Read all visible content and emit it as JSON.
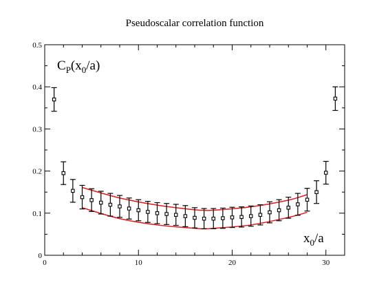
{
  "chart_data": {
    "type": "scatter",
    "title": "Pseudoscalar correlation function",
    "ylabel_main": "C",
    "ylabel_sub": "P",
    "ylabel_rest": "(x",
    "ylabel_sub2": "0",
    "ylabel_tail": "/a)",
    "xlabel_main": "x",
    "xlabel_sub": "0",
    "xlabel_tail": "/a",
    "xlim": [
      0,
      32
    ],
    "ylim": [
      0,
      0.5
    ],
    "x_ticks": [
      0,
      10,
      20,
      30
    ],
    "x_tick_labels": [
      "0",
      "10",
      "20",
      "30"
    ],
    "y_ticks": [
      0,
      0.1,
      0.2,
      0.3,
      0.4,
      0.5
    ],
    "y_tick_labels": [
      "0",
      "0.1",
      "0.2",
      "0.3",
      "0.4",
      "0.5"
    ],
    "x_minor_step": 2,
    "y_minor_step": 0.05,
    "grid": false,
    "points": [
      {
        "x": 1,
        "y": 0.37,
        "err": 0.028
      },
      {
        "x": 2,
        "y": 0.195,
        "err": 0.027
      },
      {
        "x": 3,
        "y": 0.153,
        "err": 0.027
      },
      {
        "x": 4,
        "y": 0.138,
        "err": 0.028
      },
      {
        "x": 5,
        "y": 0.131,
        "err": 0.027
      },
      {
        "x": 6,
        "y": 0.125,
        "err": 0.027
      },
      {
        "x": 7,
        "y": 0.12,
        "err": 0.027
      },
      {
        "x": 8,
        "y": 0.116,
        "err": 0.026
      },
      {
        "x": 9,
        "y": 0.111,
        "err": 0.025
      },
      {
        "x": 10,
        "y": 0.107,
        "err": 0.025
      },
      {
        "x": 11,
        "y": 0.103,
        "err": 0.025
      },
      {
        "x": 12,
        "y": 0.1,
        "err": 0.025
      },
      {
        "x": 13,
        "y": 0.098,
        "err": 0.025
      },
      {
        "x": 14,
        "y": 0.096,
        "err": 0.025
      },
      {
        "x": 15,
        "y": 0.093,
        "err": 0.025
      },
      {
        "x": 16,
        "y": 0.089,
        "err": 0.024
      },
      {
        "x": 17,
        "y": 0.087,
        "err": 0.024
      },
      {
        "x": 18,
        "y": 0.087,
        "err": 0.024
      },
      {
        "x": 19,
        "y": 0.088,
        "err": 0.024
      },
      {
        "x": 20,
        "y": 0.09,
        "err": 0.024
      },
      {
        "x": 21,
        "y": 0.091,
        "err": 0.024
      },
      {
        "x": 22,
        "y": 0.093,
        "err": 0.024
      },
      {
        "x": 23,
        "y": 0.096,
        "err": 0.024
      },
      {
        "x": 24,
        "y": 0.102,
        "err": 0.025
      },
      {
        "x": 25,
        "y": 0.107,
        "err": 0.025
      },
      {
        "x": 26,
        "y": 0.113,
        "err": 0.025
      },
      {
        "x": 27,
        "y": 0.121,
        "err": 0.026
      },
      {
        "x": 28,
        "y": 0.132,
        "err": 0.027
      },
      {
        "x": 29,
        "y": 0.15,
        "err": 0.027
      },
      {
        "x": 30,
        "y": 0.196,
        "err": 0.027
      },
      {
        "x": 31,
        "y": 0.372,
        "err": 0.028
      }
    ],
    "bands": [
      {
        "x": [
          4,
          8,
          12,
          16,
          17,
          18,
          22,
          26,
          28
        ],
        "y": [
          0.161,
          0.136,
          0.119,
          0.108,
          0.107,
          0.107,
          0.115,
          0.131,
          0.144
        ]
      },
      {
        "x": [
          4,
          8,
          12,
          16,
          17,
          18,
          22,
          26,
          28
        ],
        "y": [
          0.113,
          0.087,
          0.072,
          0.064,
          0.063,
          0.064,
          0.072,
          0.09,
          0.102
        ]
      }
    ],
    "colors": {
      "points": "#000000",
      "band": "#e0181b",
      "axes": "#000000"
    }
  }
}
